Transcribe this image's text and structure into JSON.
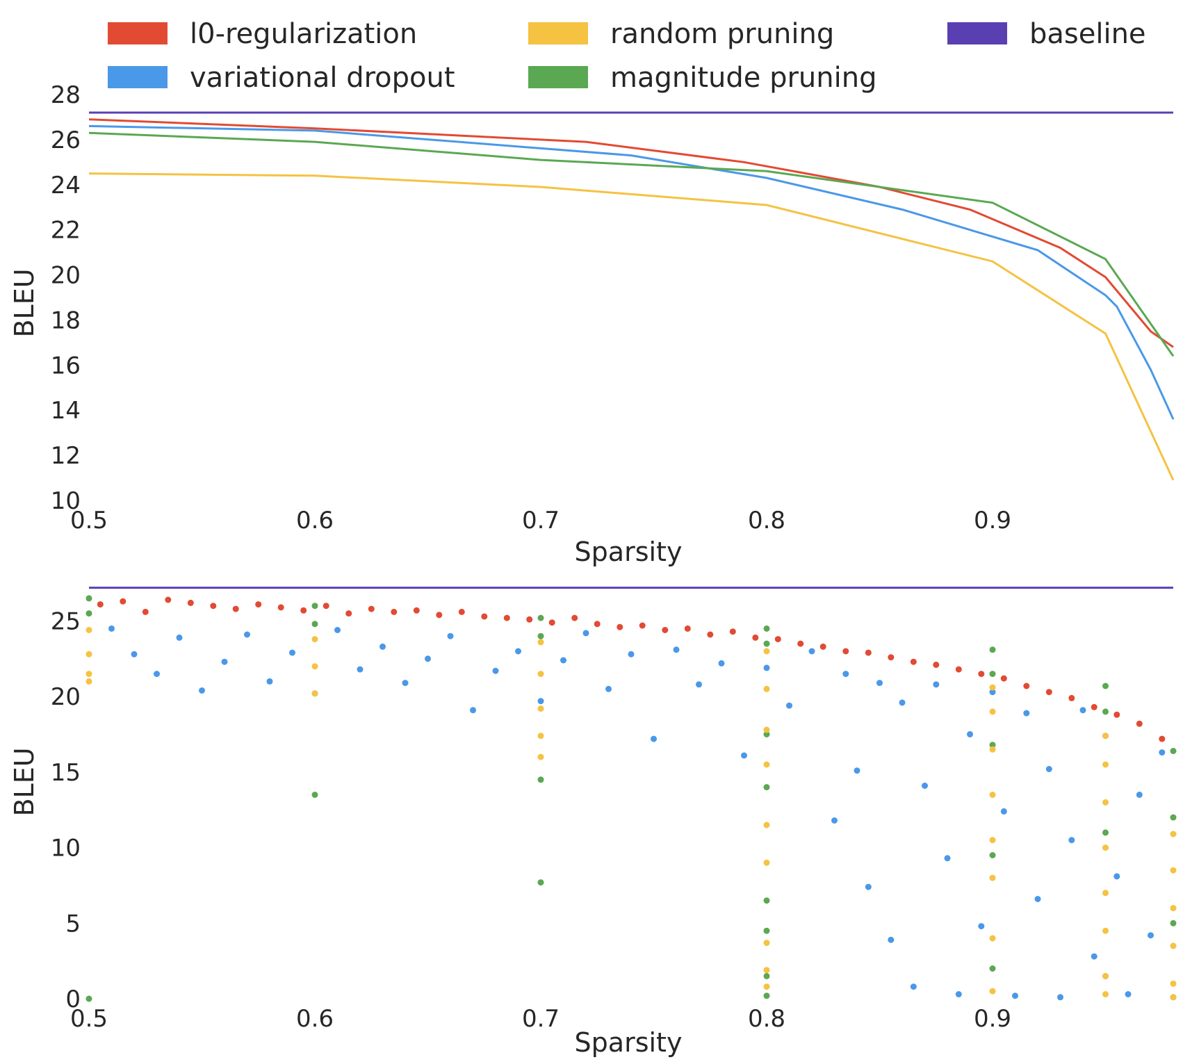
{
  "colors": {
    "l0": "#e24a33",
    "vd": "#4a98e8",
    "random": "#f5c242",
    "magnitude": "#5aa852",
    "baseline": "#5a3fb3",
    "text": "#262626"
  },
  "legend": [
    {
      "key": "l0",
      "label": "l0-regularization"
    },
    {
      "key": "random",
      "label": "random pruning"
    },
    {
      "key": "baseline",
      "label": "baseline"
    },
    {
      "key": "vd",
      "label": "variational dropout"
    },
    {
      "key": "magnitude",
      "label": "magnitude pruning"
    }
  ],
  "chart_data": [
    {
      "type": "line",
      "xlabel": "Sparsity",
      "ylabel": "BLEU",
      "xlim": [
        0.5,
        0.98
      ],
      "ylim": [
        10,
        28
      ],
      "xticks": [
        "0.5",
        "0.6",
        "0.7",
        "0.8",
        "0.9"
      ],
      "yticks": [
        "10",
        "12",
        "14",
        "16",
        "18",
        "20",
        "22",
        "24",
        "26",
        "28"
      ],
      "grid": false,
      "baseline": 27.2,
      "series": [
        {
          "name": "l0-regularization",
          "key": "l0",
          "x": [
            0.5,
            0.6,
            0.72,
            0.79,
            0.85,
            0.89,
            0.93,
            0.95,
            0.97,
            0.98
          ],
          "y": [
            26.9,
            26.5,
            25.9,
            25.0,
            23.9,
            22.9,
            21.2,
            19.9,
            17.5,
            16.8
          ]
        },
        {
          "name": "variational dropout",
          "key": "vd",
          "x": [
            0.5,
            0.6,
            0.74,
            0.8,
            0.86,
            0.92,
            0.95,
            0.955,
            0.97,
            0.98
          ],
          "y": [
            26.6,
            26.4,
            25.3,
            24.3,
            22.9,
            21.1,
            19.1,
            18.6,
            15.8,
            13.6
          ]
        },
        {
          "name": "magnitude pruning",
          "key": "magnitude",
          "x": [
            0.5,
            0.6,
            0.7,
            0.8,
            0.9,
            0.95,
            0.98
          ],
          "y": [
            26.3,
            25.9,
            25.1,
            24.6,
            23.2,
            20.7,
            16.4
          ]
        },
        {
          "name": "random pruning",
          "key": "random",
          "x": [
            0.5,
            0.6,
            0.7,
            0.8,
            0.9,
            0.95,
            0.98
          ],
          "y": [
            24.5,
            24.4,
            23.9,
            23.1,
            20.6,
            17.4,
            10.9
          ]
        }
      ]
    },
    {
      "type": "scatter",
      "xlabel": "Sparsity",
      "ylabel": "BLEU",
      "xlim": [
        0.5,
        0.98
      ],
      "ylim": [
        0,
        27
      ],
      "xticks": [
        "0.5",
        "0.6",
        "0.7",
        "0.8",
        "0.9"
      ],
      "yticks": [
        "0",
        "5",
        "10",
        "15",
        "20",
        "25"
      ],
      "grid": false,
      "baseline": 27.2,
      "series": [
        {
          "name": "l0-regularization",
          "key": "l0",
          "points": [
            [
              0.505,
              26.1
            ],
            [
              0.515,
              26.3
            ],
            [
              0.525,
              25.6
            ],
            [
              0.535,
              26.4
            ],
            [
              0.545,
              26.2
            ],
            [
              0.555,
              26.0
            ],
            [
              0.565,
              25.8
            ],
            [
              0.575,
              26.1
            ],
            [
              0.585,
              25.9
            ],
            [
              0.595,
              25.7
            ],
            [
              0.605,
              26.0
            ],
            [
              0.615,
              25.5
            ],
            [
              0.625,
              25.8
            ],
            [
              0.635,
              25.6
            ],
            [
              0.645,
              25.7
            ],
            [
              0.655,
              25.4
            ],
            [
              0.665,
              25.6
            ],
            [
              0.675,
              25.3
            ],
            [
              0.685,
              25.2
            ],
            [
              0.695,
              25.1
            ],
            [
              0.705,
              24.9
            ],
            [
              0.715,
              25.2
            ],
            [
              0.725,
              24.8
            ],
            [
              0.735,
              24.6
            ],
            [
              0.745,
              24.7
            ],
            [
              0.755,
              24.4
            ],
            [
              0.765,
              24.5
            ],
            [
              0.775,
              24.1
            ],
            [
              0.785,
              24.3
            ],
            [
              0.795,
              23.9
            ],
            [
              0.805,
              23.8
            ],
            [
              0.815,
              23.5
            ],
            [
              0.825,
              23.3
            ],
            [
              0.835,
              23.0
            ],
            [
              0.845,
              22.9
            ],
            [
              0.855,
              22.6
            ],
            [
              0.865,
              22.3
            ],
            [
              0.875,
              22.1
            ],
            [
              0.885,
              21.8
            ],
            [
              0.895,
              21.5
            ],
            [
              0.905,
              21.2
            ],
            [
              0.915,
              20.7
            ],
            [
              0.925,
              20.3
            ],
            [
              0.935,
              19.9
            ],
            [
              0.945,
              19.3
            ],
            [
              0.955,
              18.8
            ],
            [
              0.965,
              18.2
            ],
            [
              0.975,
              17.2
            ]
          ]
        },
        {
          "name": "variational dropout",
          "key": "vd",
          "points": [
            [
              0.51,
              24.5
            ],
            [
              0.52,
              22.8
            ],
            [
              0.53,
              21.5
            ],
            [
              0.54,
              23.9
            ],
            [
              0.55,
              20.4
            ],
            [
              0.56,
              22.3
            ],
            [
              0.57,
              24.1
            ],
            [
              0.58,
              21.0
            ],
            [
              0.59,
              22.9
            ],
            [
              0.6,
              20.2
            ],
            [
              0.61,
              24.4
            ],
            [
              0.62,
              21.8
            ],
            [
              0.63,
              23.3
            ],
            [
              0.64,
              20.9
            ],
            [
              0.65,
              22.5
            ],
            [
              0.66,
              24.0
            ],
            [
              0.67,
              19.1
            ],
            [
              0.68,
              21.7
            ],
            [
              0.69,
              23.0
            ],
            [
              0.7,
              19.7
            ],
            [
              0.71,
              22.4
            ],
            [
              0.72,
              24.2
            ],
            [
              0.73,
              20.5
            ],
            [
              0.74,
              22.8
            ],
            [
              0.75,
              17.2
            ],
            [
              0.76,
              23.1
            ],
            [
              0.77,
              20.8
            ],
            [
              0.78,
              22.2
            ],
            [
              0.79,
              16.1
            ],
            [
              0.8,
              21.9
            ],
            [
              0.81,
              19.4
            ],
            [
              0.82,
              23.0
            ],
            [
              0.83,
              11.8
            ],
            [
              0.835,
              21.5
            ],
            [
              0.84,
              15.1
            ],
            [
              0.845,
              7.4
            ],
            [
              0.85,
              20.9
            ],
            [
              0.855,
              3.9
            ],
            [
              0.86,
              19.6
            ],
            [
              0.865,
              0.8
            ],
            [
              0.87,
              14.1
            ],
            [
              0.875,
              20.8
            ],
            [
              0.88,
              9.3
            ],
            [
              0.885,
              0.3
            ],
            [
              0.89,
              17.5
            ],
            [
              0.895,
              4.8
            ],
            [
              0.9,
              20.3
            ],
            [
              0.905,
              12.4
            ],
            [
              0.91,
              0.2
            ],
            [
              0.915,
              18.9
            ],
            [
              0.92,
              6.6
            ],
            [
              0.925,
              15.2
            ],
            [
              0.93,
              0.1
            ],
            [
              0.935,
              10.5
            ],
            [
              0.94,
              19.1
            ],
            [
              0.945,
              2.8
            ],
            [
              0.95,
              17.4
            ],
            [
              0.955,
              8.1
            ],
            [
              0.96,
              0.3
            ],
            [
              0.965,
              13.5
            ],
            [
              0.97,
              4.2
            ],
            [
              0.975,
              16.3
            ],
            [
              0.98,
              0.1
            ]
          ]
        },
        {
          "name": "magnitude pruning",
          "key": "magnitude",
          "points": [
            [
              0.5,
              26.5
            ],
            [
              0.5,
              25.5
            ],
            [
              0.5,
              0.0
            ],
            [
              0.6,
              26.0
            ],
            [
              0.6,
              24.8
            ],
            [
              0.6,
              13.5
            ],
            [
              0.7,
              25.2
            ],
            [
              0.7,
              24.0
            ],
            [
              0.7,
              14.5
            ],
            [
              0.7,
              7.7
            ],
            [
              0.8,
              24.5
            ],
            [
              0.8,
              23.5
            ],
            [
              0.8,
              17.5
            ],
            [
              0.8,
              14.0
            ],
            [
              0.8,
              6.5
            ],
            [
              0.8,
              4.5
            ],
            [
              0.8,
              1.5
            ],
            [
              0.8,
              0.2
            ],
            [
              0.9,
              23.1
            ],
            [
              0.9,
              21.5
            ],
            [
              0.9,
              16.8
            ],
            [
              0.9,
              9.5
            ],
            [
              0.9,
              2.0
            ],
            [
              0.95,
              20.7
            ],
            [
              0.95,
              19.0
            ],
            [
              0.95,
              11.0
            ],
            [
              0.95,
              1.5
            ],
            [
              0.98,
              16.4
            ],
            [
              0.98,
              12.0
            ],
            [
              0.98,
              5.0
            ]
          ]
        },
        {
          "name": "random pruning",
          "key": "random",
          "points": [
            [
              0.5,
              24.4
            ],
            [
              0.5,
              22.8
            ],
            [
              0.5,
              21.5
            ],
            [
              0.5,
              21.0
            ],
            [
              0.6,
              23.8
            ],
            [
              0.6,
              22.0
            ],
            [
              0.6,
              20.2
            ],
            [
              0.7,
              23.6
            ],
            [
              0.7,
              21.5
            ],
            [
              0.7,
              19.2
            ],
            [
              0.7,
              17.4
            ],
            [
              0.7,
              16.0
            ],
            [
              0.8,
              23.0
            ],
            [
              0.8,
              20.5
            ],
            [
              0.8,
              17.8
            ],
            [
              0.8,
              15.5
            ],
            [
              0.8,
              11.5
            ],
            [
              0.8,
              9.0
            ],
            [
              0.8,
              3.7
            ],
            [
              0.8,
              1.9
            ],
            [
              0.8,
              0.8
            ],
            [
              0.9,
              20.6
            ],
            [
              0.9,
              19.0
            ],
            [
              0.9,
              16.5
            ],
            [
              0.9,
              13.5
            ],
            [
              0.9,
              10.5
            ],
            [
              0.9,
              8.0
            ],
            [
              0.9,
              4.0
            ],
            [
              0.9,
              0.5
            ],
            [
              0.95,
              17.4
            ],
            [
              0.95,
              15.5
            ],
            [
              0.95,
              13.0
            ],
            [
              0.95,
              10.0
            ],
            [
              0.95,
              7.0
            ],
            [
              0.95,
              4.5
            ],
            [
              0.95,
              1.5
            ],
            [
              0.95,
              0.3
            ],
            [
              0.98,
              10.9
            ],
            [
              0.98,
              8.5
            ],
            [
              0.98,
              6.0
            ],
            [
              0.98,
              3.5
            ],
            [
              0.98,
              1.0
            ],
            [
              0.98,
              0.1
            ]
          ]
        }
      ]
    }
  ]
}
